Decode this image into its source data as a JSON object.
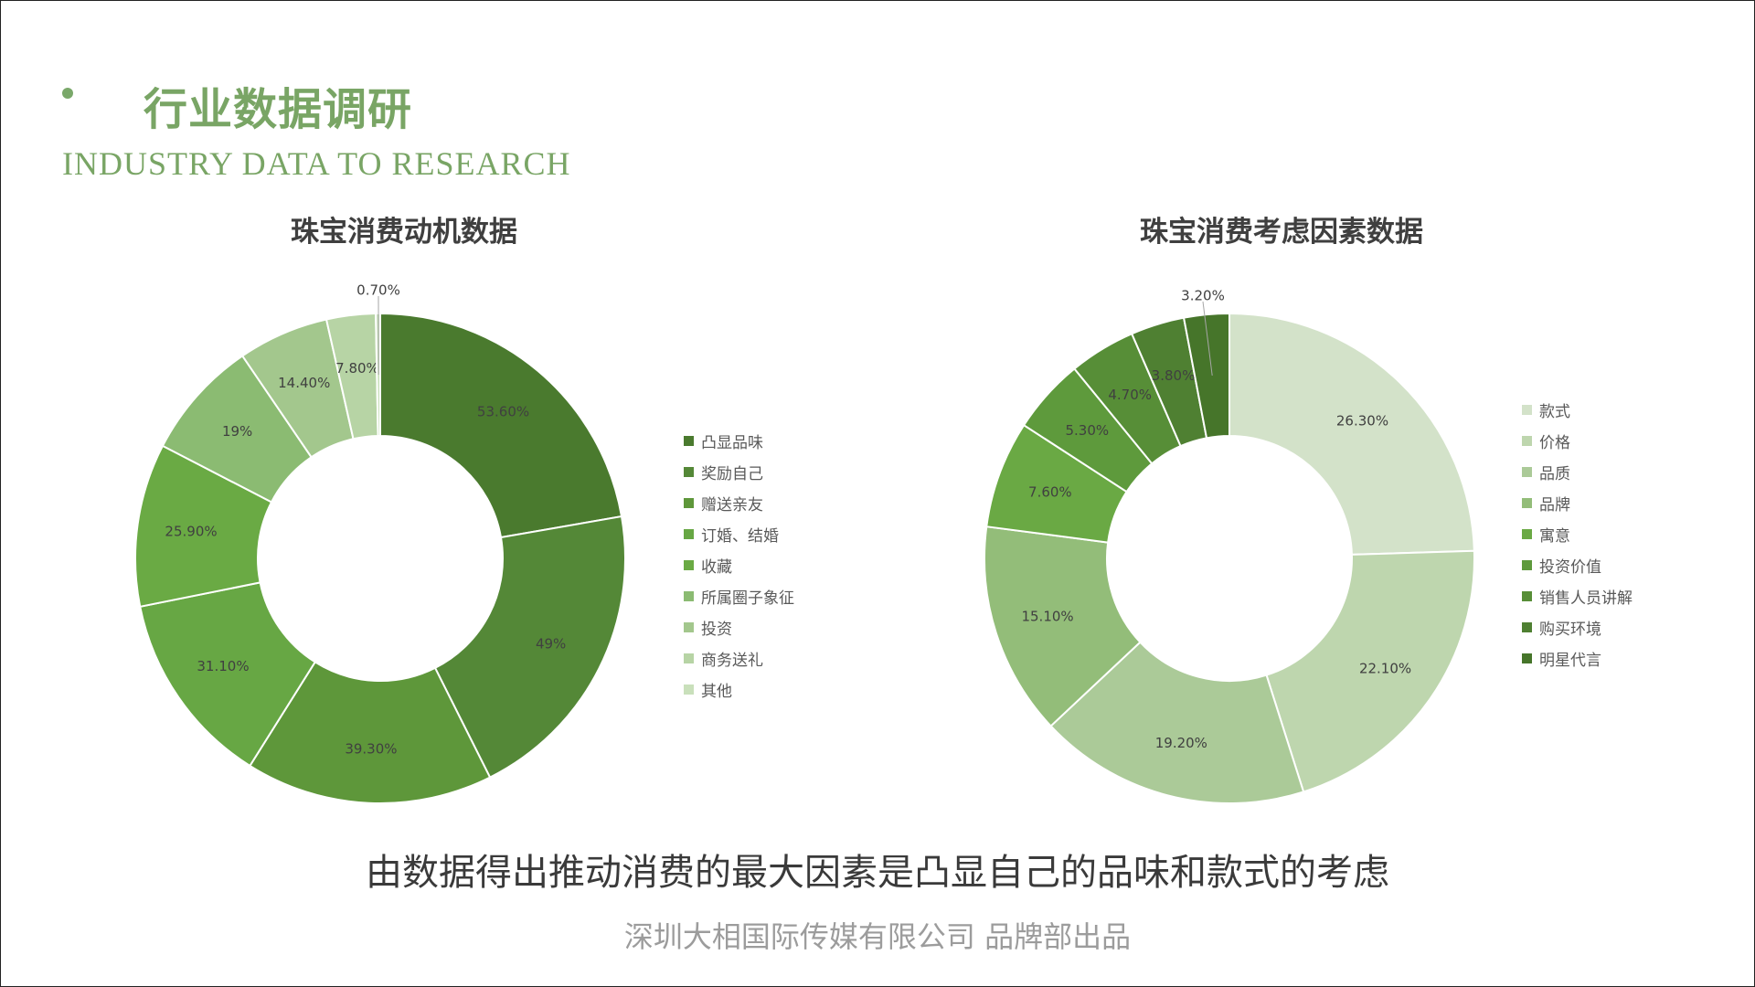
{
  "header": {
    "title": "行业数据调研",
    "subtitle": "INDUSTRY DATA TO RESEARCH"
  },
  "colors": {
    "accent": "#79a565",
    "chart1": [
      "#4a7a2e",
      "#548837",
      "#5e973a",
      "#67a744",
      "#6aaa44",
      "#8bbb72",
      "#a3c78d",
      "#b7d4a5",
      "#c9e0bb"
    ],
    "chart2": [
      "#d3e2c9",
      "#bed6ae",
      "#abca98",
      "#93bd79",
      "#6aa944",
      "#5e9a3c",
      "#578e37",
      "#4f8032",
      "#46752a"
    ]
  },
  "chart_data": [
    {
      "type": "donut",
      "title": "珠宝消费动机数据",
      "categories": [
        "凸显品味",
        "奖励自己",
        "赠送亲友",
        "订婚、结婚",
        "收藏",
        "所属圈子象征",
        "投资",
        "商务送礼",
        "其他"
      ],
      "values": [
        53.6,
        49,
        39.3,
        31.1,
        25.9,
        19,
        14.4,
        7.8,
        0.7
      ],
      "labels": [
        "53.60%",
        "49%",
        "39.30%",
        "31.10%",
        "25.90%",
        "19%",
        "14.40%",
        "7.80%",
        "0.70%"
      ],
      "legend": "right"
    },
    {
      "type": "donut",
      "title": "珠宝消费考虑因素数据",
      "categories": [
        "款式",
        "价格",
        "品质",
        "品牌",
        "寓意",
        "投资价值",
        "销售人员讲解",
        "购买环境",
        "明星代言"
      ],
      "values": [
        26.3,
        22.1,
        19.2,
        15.1,
        7.6,
        5.3,
        4.7,
        3.8,
        3.2
      ],
      "labels": [
        "26.30%",
        "22.10%",
        "19.20%",
        "15.10%",
        "7.60%",
        "5.30%",
        "4.70%",
        "3.80%",
        "3.20%"
      ],
      "legend": "right"
    }
  ],
  "conclusion": "由数据得出推动消费的最大因素是凸显自己的品味和款式的考虑",
  "footer": "深圳大相国际传媒有限公司 品牌部出品"
}
